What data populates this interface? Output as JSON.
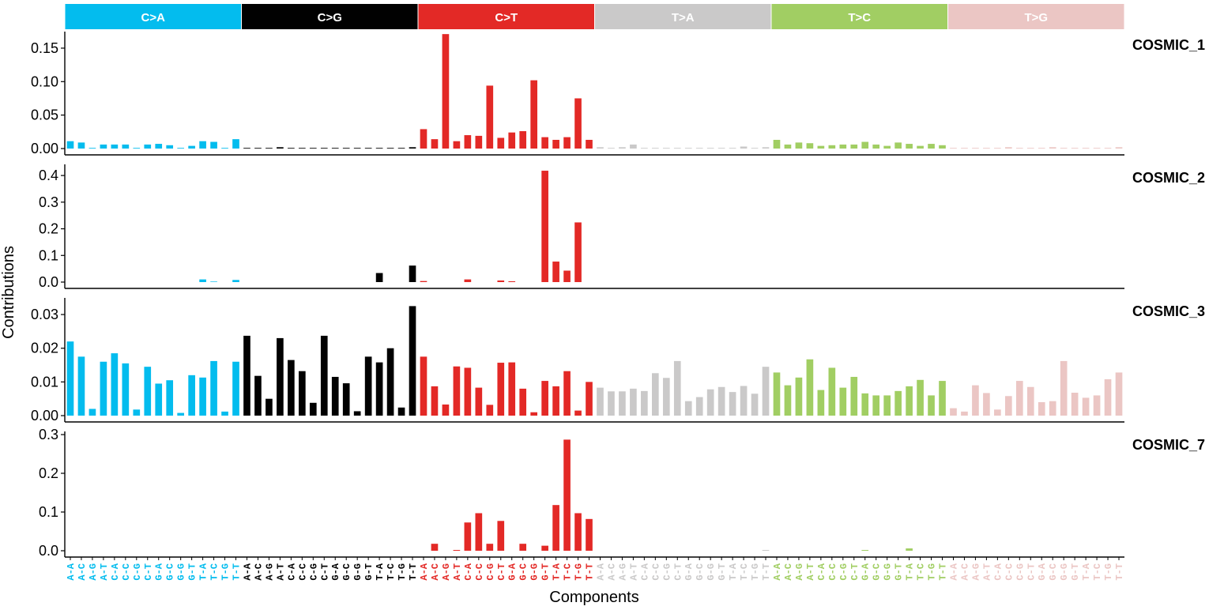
{
  "chart_data": {
    "type": "bar",
    "xlabel": "Components",
    "ylabel": "Contributions",
    "groups": [
      {
        "name": "C>A",
        "color": "#03BCEE",
        "text_color": "#03BCEE"
      },
      {
        "name": "C>G",
        "color": "#010101",
        "text_color": "#010101"
      },
      {
        "name": "C>T",
        "color": "#E32926",
        "text_color": "#E32926"
      },
      {
        "name": "T>A",
        "color": "#CAC9C9",
        "text_color": "#CAC9C9"
      },
      {
        "name": "T>C",
        "color": "#A1CE63",
        "text_color": "#A1CE63"
      },
      {
        "name": "T>G",
        "color": "#EBC6C4",
        "text_color": "#EBC6C4"
      }
    ],
    "contexts": [
      "A-A",
      "A-C",
      "A-G",
      "A-T",
      "C-A",
      "C-C",
      "C-G",
      "C-T",
      "G-A",
      "G-C",
      "G-G",
      "G-T",
      "T-A",
      "T-C",
      "T-G",
      "T-T"
    ],
    "panels": [
      {
        "name": "COSMIC_1",
        "ylim": [
          0,
          0.17
        ],
        "yticks": [
          "0.00",
          "0.05",
          "0.10",
          "0.15"
        ],
        "values": [
          0.011,
          0.009,
          0.001,
          0.006,
          0.006,
          0.006,
          0.001,
          0.006,
          0.007,
          0.005,
          0.001,
          0.004,
          0.011,
          0.01,
          0.001,
          0.014,
          0.001,
          0.001,
          0.001,
          0.002,
          0.001,
          0.001,
          0.001,
          0.001,
          0.001,
          0.001,
          0.001,
          0.001,
          0.001,
          0.001,
          0.001,
          0.002,
          0.029,
          0.014,
          0.171,
          0.011,
          0.02,
          0.019,
          0.094,
          0.016,
          0.024,
          0.026,
          0.102,
          0.017,
          0.013,
          0.017,
          0.075,
          0.013,
          0.002,
          0.001,
          0.002,
          0.006,
          0.001,
          0.001,
          0.001,
          0.001,
          0.001,
          0.001,
          0.001,
          0.001,
          0.001,
          0.003,
          0.001,
          0.002,
          0.013,
          0.006,
          0.009,
          0.008,
          0.004,
          0.005,
          0.006,
          0.006,
          0.01,
          0.006,
          0.004,
          0.009,
          0.007,
          0.004,
          0.007,
          0.005,
          0.001,
          0.001,
          0.001,
          0.001,
          0.001,
          0.002,
          0.001,
          0.001,
          0.001,
          0.002,
          0.001,
          0.001,
          0.001,
          0.001,
          0.001,
          0.002
        ]
      },
      {
        "name": "COSMIC_2",
        "ylim": [
          0,
          0.43
        ],
        "yticks": [
          "0.0",
          "0.1",
          "0.2",
          "0.3",
          "0.4"
        ],
        "values": [
          0,
          0,
          0,
          0,
          0,
          0,
          0,
          0,
          0,
          0,
          0,
          0,
          0.01,
          0.002,
          0,
          0.008,
          0,
          0,
          0,
          0,
          0,
          0,
          0,
          0,
          0,
          0,
          0,
          0,
          0.034,
          0,
          0,
          0.062,
          0.004,
          0,
          0,
          0,
          0.01,
          0,
          0,
          0.006,
          0.003,
          0,
          0,
          0.418,
          0.077,
          0.043,
          0.224,
          0,
          0,
          0,
          0,
          0,
          0,
          0,
          0,
          0,
          0,
          0,
          0,
          0,
          0,
          0,
          0,
          0,
          0,
          0,
          0,
          0,
          0,
          0,
          0,
          0,
          0,
          0,
          0,
          0,
          0,
          0,
          0,
          0,
          0,
          0,
          0,
          0,
          0,
          0,
          0,
          0,
          0,
          0,
          0,
          0,
          0,
          0,
          0,
          0
        ]
      },
      {
        "name": "COSMIC_3",
        "ylim": [
          0,
          0.034
        ],
        "yticks": [
          "0.00",
          "0.01",
          "0.02",
          "0.03"
        ],
        "values": [
          0.022,
          0.0175,
          0.002,
          0.016,
          0.0185,
          0.0155,
          0.0018,
          0.0145,
          0.0095,
          0.0105,
          0.0008,
          0.012,
          0.0113,
          0.0162,
          0.0012,
          0.016,
          0.0237,
          0.0118,
          0.005,
          0.023,
          0.0165,
          0.0132,
          0.0038,
          0.0237,
          0.0115,
          0.0096,
          0.0013,
          0.0175,
          0.0158,
          0.02,
          0.0024,
          0.0325,
          0.0175,
          0.0087,
          0.0033,
          0.0146,
          0.0142,
          0.0083,
          0.0032,
          0.0157,
          0.0158,
          0.008,
          0.001,
          0.0103,
          0.0087,
          0.0132,
          0.0015,
          0.01,
          0.0083,
          0.0072,
          0.0072,
          0.008,
          0.0073,
          0.0126,
          0.0112,
          0.0162,
          0.0043,
          0.0055,
          0.0078,
          0.0085,
          0.007,
          0.0088,
          0.0065,
          0.0145,
          0.0128,
          0.009,
          0.0113,
          0.0167,
          0.0076,
          0.0142,
          0.0083,
          0.0115,
          0.0066,
          0.006,
          0.006,
          0.0073,
          0.0087,
          0.0106,
          0.006,
          0.0103,
          0.0022,
          0.0012,
          0.009,
          0.0067,
          0.0018,
          0.0058,
          0.0103,
          0.0085,
          0.004,
          0.0043,
          0.0162,
          0.0068,
          0.0053,
          0.006,
          0.0108,
          0.0128
        ]
      },
      {
        "name": "COSMIC_7",
        "ylim": [
          0,
          0.3
        ],
        "yticks": [
          "0.0",
          "0.1",
          "0.2",
          "0.3"
        ],
        "values": [
          0,
          0,
          0,
          0,
          0,
          0,
          0,
          0,
          0,
          0,
          0,
          0,
          0,
          0,
          0,
          0,
          0,
          0,
          0,
          0,
          0,
          0,
          0,
          0,
          0,
          0,
          0,
          0,
          0,
          0,
          0,
          0,
          0,
          0.018,
          0,
          0.002,
          0.073,
          0.097,
          0.018,
          0.077,
          0,
          0.018,
          0,
          0.013,
          0.118,
          0.287,
          0.097,
          0.082,
          0,
          0,
          0,
          0,
          0,
          0,
          0,
          0,
          0,
          0,
          0,
          0,
          0,
          0,
          0,
          0.002,
          0,
          0,
          0,
          0,
          0,
          0,
          0,
          0,
          0.002,
          0,
          0,
          0,
          0.006,
          0,
          0,
          0,
          0,
          0,
          0,
          0,
          0,
          0,
          0,
          0,
          0,
          0,
          0,
          0,
          0,
          0,
          0,
          0
        ]
      }
    ]
  }
}
